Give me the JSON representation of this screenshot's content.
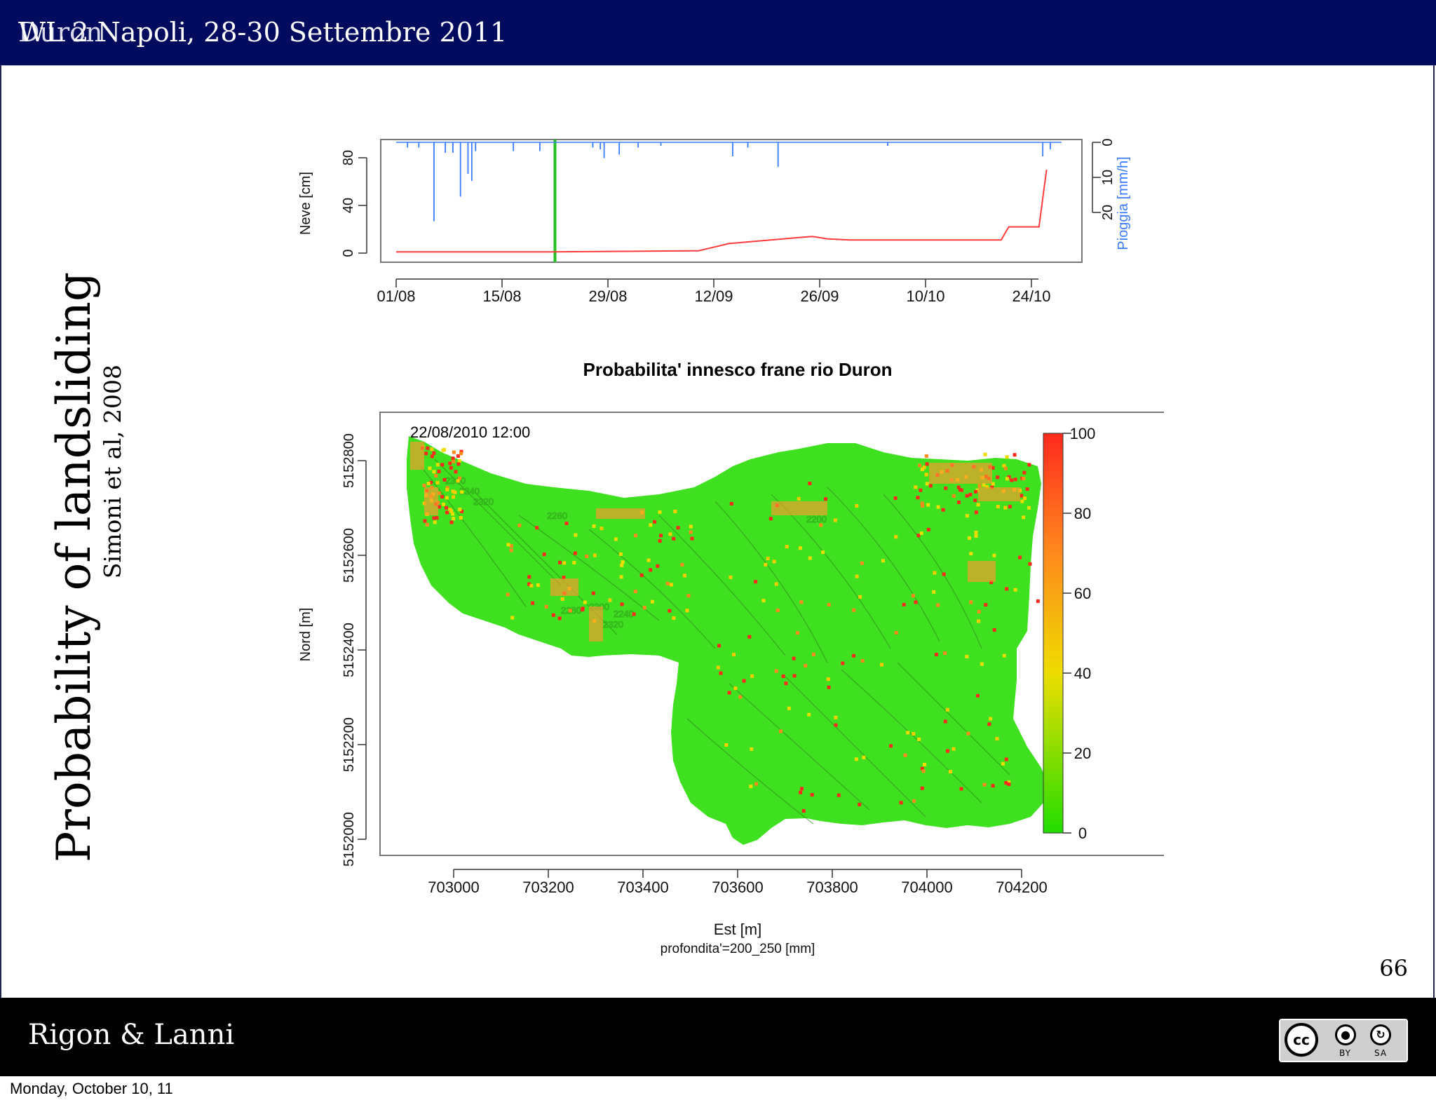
{
  "header": {
    "ghost_text": "Duron",
    "title": "WL 2 Napoli, 28-30 Settembre 2011"
  },
  "slide": {
    "vertical_title": "Probability of landsliding",
    "vertical_subtitle": "Simoni et al, 2008",
    "page_number": "66"
  },
  "footer": {
    "authors": "Rigon & Lanni",
    "license_icon": "cc-by-sa-icon",
    "license_by": "BY",
    "license_sa": "SA",
    "license_cc": "cc"
  },
  "os_overlay": {
    "date": "Monday, October 10, 11"
  },
  "chart_data": [
    {
      "type": "line",
      "x_ticks": [
        "01/08",
        "15/08",
        "29/08",
        "12/09",
        "26/09",
        "10/10",
        "24/10"
      ],
      "ylabel": "Neve [cm]",
      "y_ticks": [
        "0",
        "40",
        "80"
      ],
      "ylim": [
        0,
        100
      ],
      "ylabel_right": "Pioggia [mm/h]",
      "y_right_ticks": [
        "0",
        "10",
        "20"
      ],
      "y_right_reversed": true,
      "marker_date": "22/08",
      "colors": {
        "snow": "#ff3b3b",
        "rain": "#3b7bff",
        "marker": "#22c022"
      },
      "series": [
        {
          "name": "Neve [cm]",
          "x": [
            0,
            10,
            20,
            30,
            40,
            44,
            55,
            56,
            57,
            60,
            70,
            80,
            81,
            85,
            86
          ],
          "y": [
            1,
            1,
            1,
            1.5,
            2,
            8,
            14,
            13,
            12,
            11,
            11,
            11,
            22,
            22,
            70
          ]
        },
        {
          "name": "Pioggia [mm/h]",
          "x": [
            1.5,
            3,
            5,
            6.5,
            7.5,
            8.5,
            9.5,
            10,
            10.5,
            15.5,
            19,
            26,
            27,
            27.5,
            29.5,
            32,
            35,
            44.5,
            46.5,
            50.5,
            65,
            85.5,
            86.5
          ],
          "y": [
            1.5,
            1.5,
            22.5,
            3,
            3,
            15.5,
            9,
            11,
            2.5,
            2.5,
            2.5,
            1.5,
            2,
            4.5,
            3.5,
            1.5,
            1,
            4,
            1.5,
            7,
            1,
            4,
            2
          ]
        }
      ]
    },
    {
      "type": "heatmap",
      "title": "Probabilita' innesco frane rio Duron",
      "annotation": "22/08/2010 12:00",
      "xlabel": "Est [m]",
      "xlabel_sub": "profondita'=200_250 [mm]",
      "x_ticks": [
        "703000",
        "703200",
        "703400",
        "703600",
        "703800",
        "704000",
        "704200"
      ],
      "ylabel": "Nord [m]",
      "y_ticks": [
        "5152000",
        "5152200",
        "5152400",
        "5152600",
        "5152800"
      ],
      "colorbar_ticks": [
        "0",
        "20",
        "40",
        "60",
        "80",
        "100"
      ],
      "colorbar_range": [
        0,
        100
      ],
      "colors": {
        "low": "#22dd00",
        "mid": "#eedd00",
        "high": "#ff2a1e"
      },
      "contour_labels": [
        "2360",
        "2340",
        "2320",
        "2240",
        "2260",
        "2280",
        "2300",
        "2320",
        "2200"
      ]
    }
  ]
}
